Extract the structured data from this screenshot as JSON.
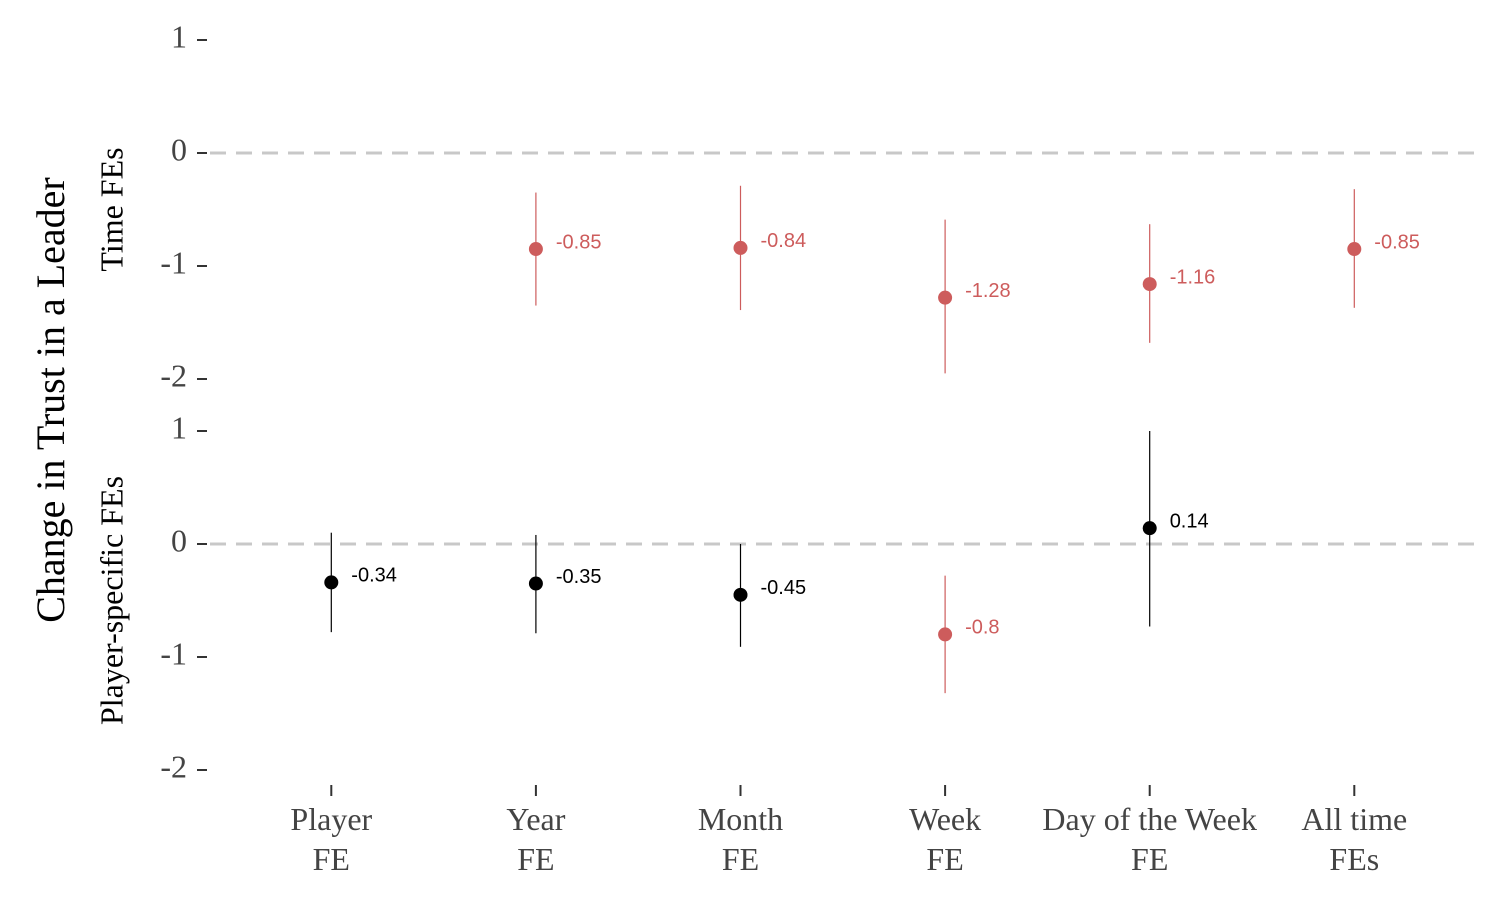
{
  "chart_data": {
    "type": "pointrange",
    "ylabel": "Change in Trust in a Leader",
    "categories": [
      "Player\nFE",
      "Year\nFE",
      "Month\nFE",
      "Week\nFE",
      "Day of the Week\nFE",
      "All time\nFEs"
    ],
    "panels": [
      {
        "label": "Time FEs",
        "ylim": [
          -2.1,
          1.1
        ],
        "yticks": [
          -2,
          -1,
          0,
          1
        ],
        "hline": 0,
        "values": [
          null,
          -0.85,
          -0.84,
          -1.28,
          -1.16,
          -0.85
        ],
        "lower": [
          null,
          -1.35,
          -1.39,
          -1.95,
          -1.68,
          -1.37
        ],
        "upper": [
          null,
          -0.35,
          -0.29,
          -0.59,
          -0.63,
          -0.32
        ],
        "colors": [
          null,
          "#cd5c5c",
          "#cd5c5c",
          "#cd5c5c",
          "#cd5c5c",
          "#cd5c5c"
        ]
      },
      {
        "label": "Player-specific FEs",
        "ylim": [
          -2.1,
          1.1
        ],
        "yticks": [
          -2,
          -1,
          0,
          1
        ],
        "hline": 0,
        "values": [
          -0.34,
          -0.35,
          -0.45,
          -0.8,
          0.14,
          null
        ],
        "lower": [
          -0.78,
          -0.79,
          -0.91,
          -1.32,
          -0.73,
          null
        ],
        "upper": [
          0.1,
          0.08,
          0.0,
          -0.28,
          1.0,
          null
        ],
        "colors": [
          "#000000",
          "#000000",
          "#000000",
          "#cd5c5c",
          "#000000",
          null
        ]
      }
    ]
  }
}
